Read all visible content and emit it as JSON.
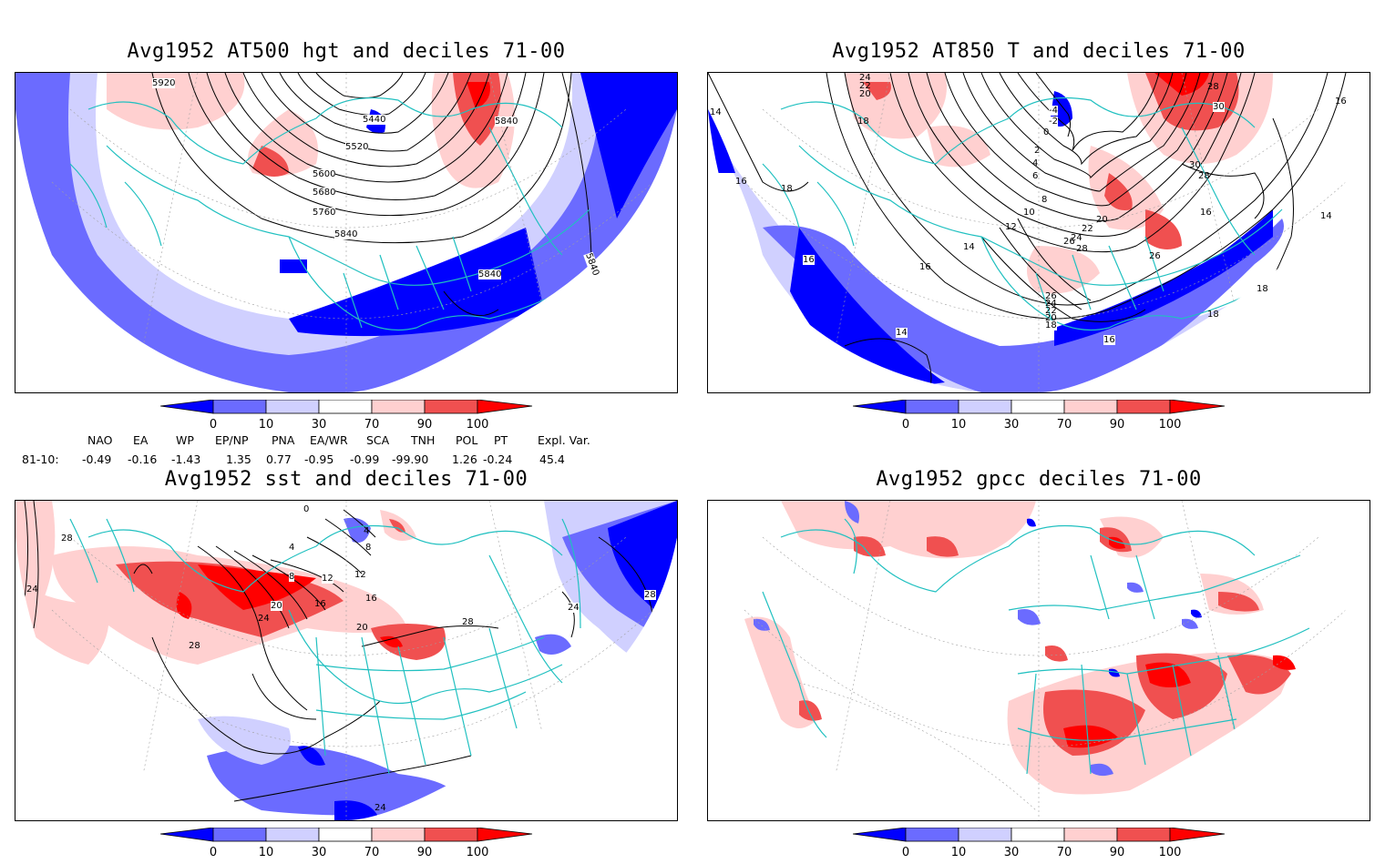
{
  "panels": [
    {
      "id": "p1",
      "title": "Avg1952 AT500 hgt and deciles 71-00",
      "labels": [
        "5920",
        "5440",
        "5520",
        "5600",
        "5680",
        "5760",
        "5840",
        "5840",
        "5840",
        "5840"
      ]
    },
    {
      "id": "p2",
      "title": "Avg1952 AT850 T and deciles 71-00",
      "labels": [
        "24",
        "22",
        "20",
        "18",
        "14",
        "16",
        "18",
        "16",
        "-4",
        "-2",
        "0",
        "2",
        "4",
        "6",
        "8",
        "10",
        "12",
        "14",
        "16",
        "20",
        "22",
        "24",
        "26",
        "28",
        "26",
        "24",
        "22",
        "20",
        "18",
        "14",
        "16",
        "18",
        "18",
        "26",
        "28",
        "30",
        "30",
        "28",
        "16",
        "14",
        "16"
      ]
    },
    {
      "id": "p3",
      "title": "Avg1952 sst and deciles 71-00",
      "labels": [
        "28",
        "24",
        "0",
        "4",
        "8",
        "12",
        "16",
        "20",
        "24",
        "28",
        "28",
        "24",
        "28",
        "24",
        "20",
        "16",
        "12",
        "8",
        "4"
      ]
    },
    {
      "id": "p4",
      "title": "Avg1952 gpcc deciles 71-00",
      "labels": []
    }
  ],
  "colorbar": {
    "ticks": [
      "0",
      "10",
      "30",
      "70",
      "90",
      "100"
    ],
    "colors": {
      "dark_blue": "#0000ff",
      "mid_blue": "#6b6bff",
      "light_blue": "#d0d0ff",
      "light_red": "#ffd0d0",
      "mid_red": "#f05050",
      "dark_red": "#ff0000"
    }
  },
  "indices": {
    "headers": [
      "NAO",
      "EA",
      "WP",
      "EP/NP",
      "PNA",
      "EA/WR",
      "SCA",
      "TNH",
      "POL",
      "PT",
      "Expl. Var."
    ],
    "row_label": "81-10:",
    "values": [
      "-0.49",
      "-0.16",
      "-1.43",
      "1.35",
      "0.77",
      "-0.95",
      "-0.99",
      "-99.90",
      "1.26",
      "-0.24",
      "45.4"
    ]
  },
  "colors": {
    "coast": "#20c0c0",
    "contour": "#000000",
    "grid": "#a0a0a0"
  }
}
